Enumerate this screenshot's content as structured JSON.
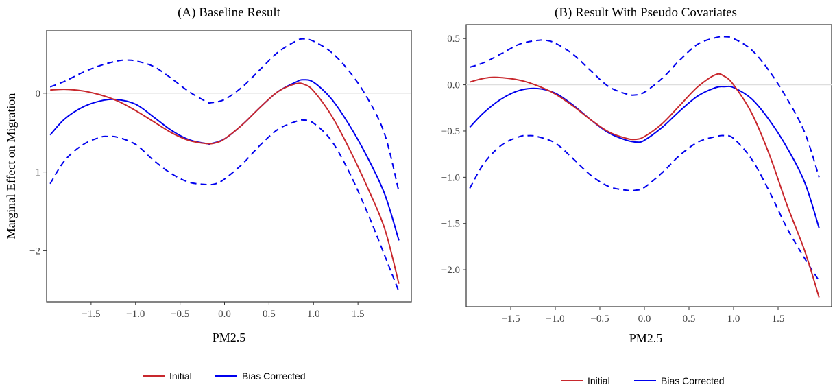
{
  "chart_data": [
    {
      "type": "line",
      "title": "(A) Baseline Result",
      "xlabel": "PM2.5",
      "ylabel": "Marginal Effect on Migration",
      "xlim": [
        -2.0,
        2.1
      ],
      "ylim": [
        -2.65,
        0.8
      ],
      "x_ticks": [
        -1.5,
        -1.0,
        -0.5,
        0.0,
        0.5,
        1.0,
        1.5
      ],
      "x_tick_labels": [
        "−1.5",
        "−1.0",
        "−0.5",
        "0.0",
        "0.5",
        "1.0",
        "1.5"
      ],
      "y_ticks": [
        0,
        -1,
        -2
      ],
      "y_tick_labels": [
        "0",
        "−1",
        "−2"
      ],
      "reference_line_y": 0,
      "grid": false,
      "legend": {
        "position": "bottom",
        "entries": [
          "Initial",
          "Bias Corrected"
        ]
      },
      "series": [
        {
          "name": "Initial",
          "style": "solid",
          "color": "#c8282d",
          "points": [
            [
              -1.96,
              0.04
            ],
            [
              -1.8,
              0.05
            ],
            [
              -1.6,
              0.03
            ],
            [
              -1.4,
              -0.02
            ],
            [
              -1.2,
              -0.1
            ],
            [
              -1.0,
              -0.22
            ],
            [
              -0.8,
              -0.36
            ],
            [
              -0.6,
              -0.5
            ],
            [
              -0.4,
              -0.6
            ],
            [
              -0.2,
              -0.64
            ],
            [
              -0.1,
              -0.63
            ],
            [
              0.0,
              -0.58
            ],
            [
              0.2,
              -0.4
            ],
            [
              0.4,
              -0.18
            ],
            [
              0.6,
              0.02
            ],
            [
              0.8,
              0.12
            ],
            [
              0.9,
              0.11
            ],
            [
              1.0,
              0.03
            ],
            [
              1.2,
              -0.28
            ],
            [
              1.4,
              -0.7
            ],
            [
              1.6,
              -1.18
            ],
            [
              1.8,
              -1.72
            ],
            [
              1.96,
              -2.42
            ]
          ]
        },
        {
          "name": "Bias Corrected",
          "style": "solid",
          "color": "#0000ee",
          "points": [
            [
              -1.96,
              -0.53
            ],
            [
              -1.8,
              -0.33
            ],
            [
              -1.6,
              -0.18
            ],
            [
              -1.4,
              -0.1
            ],
            [
              -1.22,
              -0.08
            ],
            [
              -1.0,
              -0.14
            ],
            [
              -0.8,
              -0.3
            ],
            [
              -0.6,
              -0.47
            ],
            [
              -0.4,
              -0.59
            ],
            [
              -0.2,
              -0.64
            ],
            [
              -0.15,
              -0.64
            ],
            [
              0.0,
              -0.58
            ],
            [
              0.2,
              -0.4
            ],
            [
              0.4,
              -0.18
            ],
            [
              0.6,
              0.02
            ],
            [
              0.8,
              0.14
            ],
            [
              0.88,
              0.17
            ],
            [
              1.0,
              0.14
            ],
            [
              1.2,
              -0.07
            ],
            [
              1.4,
              -0.4
            ],
            [
              1.6,
              -0.8
            ],
            [
              1.8,
              -1.28
            ],
            [
              1.96,
              -1.87
            ]
          ]
        },
        {
          "name": "Upper band",
          "style": "dashed",
          "color": "#0000ee",
          "points": [
            [
              -1.96,
              0.08
            ],
            [
              -1.8,
              0.15
            ],
            [
              -1.6,
              0.26
            ],
            [
              -1.4,
              0.35
            ],
            [
              -1.2,
              0.41
            ],
            [
              -1.1,
              0.42
            ],
            [
              -1.0,
              0.41
            ],
            [
              -0.8,
              0.34
            ],
            [
              -0.6,
              0.19
            ],
            [
              -0.4,
              0.02
            ],
            [
              -0.2,
              -0.11
            ],
            [
              -0.15,
              -0.12
            ],
            [
              0.0,
              -0.08
            ],
            [
              0.2,
              0.08
            ],
            [
              0.4,
              0.3
            ],
            [
              0.6,
              0.52
            ],
            [
              0.8,
              0.66
            ],
            [
              0.88,
              0.69
            ],
            [
              1.0,
              0.66
            ],
            [
              1.2,
              0.52
            ],
            [
              1.4,
              0.28
            ],
            [
              1.6,
              -0.05
            ],
            [
              1.8,
              -0.52
            ],
            [
              1.96,
              -1.25
            ]
          ]
        },
        {
          "name": "Lower band",
          "style": "dashed",
          "color": "#0000ee",
          "points": [
            [
              -1.96,
              -1.15
            ],
            [
              -1.8,
              -0.86
            ],
            [
              -1.6,
              -0.66
            ],
            [
              -1.4,
              -0.56
            ],
            [
              -1.3,
              -0.55
            ],
            [
              -1.2,
              -0.56
            ],
            [
              -1.0,
              -0.65
            ],
            [
              -0.8,
              -0.85
            ],
            [
              -0.6,
              -1.02
            ],
            [
              -0.4,
              -1.13
            ],
            [
              -0.2,
              -1.16
            ],
            [
              -0.1,
              -1.15
            ],
            [
              0.0,
              -1.09
            ],
            [
              0.2,
              -0.9
            ],
            [
              0.4,
              -0.66
            ],
            [
              0.6,
              -0.46
            ],
            [
              0.8,
              -0.36
            ],
            [
              0.88,
              -0.34
            ],
            [
              1.0,
              -0.38
            ],
            [
              1.2,
              -0.6
            ],
            [
              1.4,
              -1.0
            ],
            [
              1.6,
              -1.5
            ],
            [
              1.8,
              -2.06
            ],
            [
              1.96,
              -2.52
            ]
          ]
        }
      ]
    },
    {
      "type": "line",
      "title": "(B) Result With Pseudo Covariates",
      "xlabel": "PM2.5",
      "ylabel": "",
      "xlim": [
        -2.0,
        2.1
      ],
      "ylim": [
        -2.4,
        0.65
      ],
      "x_ticks": [
        -1.5,
        -1.0,
        -0.5,
        0.0,
        0.5,
        1.0,
        1.5
      ],
      "x_tick_labels": [
        "−1.5",
        "−1.0",
        "−0.5",
        "0.0",
        "0.5",
        "1.0",
        "1.5"
      ],
      "y_ticks": [
        0.5,
        0.0,
        -0.5,
        -1.0,
        -1.5,
        -2.0
      ],
      "y_tick_labels": [
        "0.5",
        "0.0",
        "−0.5",
        "−1.0",
        "−1.5",
        "−2.0"
      ],
      "reference_line_y": 0,
      "grid": false,
      "legend": {
        "position": "bottom",
        "entries": [
          "Initial",
          "Bias Corrected"
        ]
      },
      "series": [
        {
          "name": "Initial",
          "style": "solid",
          "color": "#c8282d",
          "points": [
            [
              -1.96,
              0.03
            ],
            [
              -1.8,
              0.07
            ],
            [
              -1.65,
              0.08
            ],
            [
              -1.4,
              0.05
            ],
            [
              -1.2,
              -0.01
            ],
            [
              -1.0,
              -0.1
            ],
            [
              -0.8,
              -0.23
            ],
            [
              -0.6,
              -0.38
            ],
            [
              -0.4,
              -0.51
            ],
            [
              -0.2,
              -0.58
            ],
            [
              -0.1,
              -0.59
            ],
            [
              0.0,
              -0.56
            ],
            [
              0.2,
              -0.42
            ],
            [
              0.4,
              -0.22
            ],
            [
              0.6,
              -0.02
            ],
            [
              0.8,
              0.11
            ],
            [
              0.9,
              0.09
            ],
            [
              1.0,
              0.0
            ],
            [
              1.2,
              -0.3
            ],
            [
              1.4,
              -0.75
            ],
            [
              1.6,
              -1.3
            ],
            [
              1.8,
              -1.8
            ],
            [
              1.96,
              -2.3
            ]
          ]
        },
        {
          "name": "Bias Corrected",
          "style": "solid",
          "color": "#0000ee",
          "points": [
            [
              -1.96,
              -0.46
            ],
            [
              -1.8,
              -0.3
            ],
            [
              -1.6,
              -0.15
            ],
            [
              -1.4,
              -0.06
            ],
            [
              -1.2,
              -0.04
            ],
            [
              -1.0,
              -0.09
            ],
            [
              -0.8,
              -0.22
            ],
            [
              -0.6,
              -0.38
            ],
            [
              -0.4,
              -0.52
            ],
            [
              -0.2,
              -0.6
            ],
            [
              -0.08,
              -0.62
            ],
            [
              0.0,
              -0.6
            ],
            [
              0.2,
              -0.46
            ],
            [
              0.4,
              -0.28
            ],
            [
              0.6,
              -0.12
            ],
            [
              0.8,
              -0.03
            ],
            [
              0.9,
              -0.02
            ],
            [
              1.0,
              -0.03
            ],
            [
              1.2,
              -0.15
            ],
            [
              1.4,
              -0.38
            ],
            [
              1.6,
              -0.68
            ],
            [
              1.8,
              -1.06
            ],
            [
              1.96,
              -1.55
            ]
          ]
        },
        {
          "name": "Upper band",
          "style": "dashed",
          "color": "#0000ee",
          "points": [
            [
              -1.96,
              0.19
            ],
            [
              -1.8,
              0.24
            ],
            [
              -1.6,
              0.34
            ],
            [
              -1.4,
              0.44
            ],
            [
              -1.2,
              0.48
            ],
            [
              -1.1,
              0.48
            ],
            [
              -1.0,
              0.45
            ],
            [
              -0.8,
              0.33
            ],
            [
              -0.6,
              0.15
            ],
            [
              -0.4,
              -0.02
            ],
            [
              -0.2,
              -0.1
            ],
            [
              -0.1,
              -0.11
            ],
            [
              0.0,
              -0.08
            ],
            [
              0.2,
              0.07
            ],
            [
              0.4,
              0.27
            ],
            [
              0.6,
              0.44
            ],
            [
              0.8,
              0.51
            ],
            [
              0.9,
              0.52
            ],
            [
              1.0,
              0.5
            ],
            [
              1.2,
              0.38
            ],
            [
              1.4,
              0.15
            ],
            [
              1.6,
              -0.15
            ],
            [
              1.8,
              -0.52
            ],
            [
              1.96,
              -1.0
            ]
          ]
        },
        {
          "name": "Lower band",
          "style": "dashed",
          "color": "#0000ee",
          "points": [
            [
              -1.96,
              -1.12
            ],
            [
              -1.8,
              -0.85
            ],
            [
              -1.6,
              -0.65
            ],
            [
              -1.4,
              -0.56
            ],
            [
              -1.3,
              -0.55
            ],
            [
              -1.2,
              -0.56
            ],
            [
              -1.0,
              -0.63
            ],
            [
              -0.8,
              -0.8
            ],
            [
              -0.6,
              -0.98
            ],
            [
              -0.4,
              -1.1
            ],
            [
              -0.2,
              -1.14
            ],
            [
              -0.1,
              -1.14
            ],
            [
              0.0,
              -1.11
            ],
            [
              0.2,
              -0.95
            ],
            [
              0.4,
              -0.76
            ],
            [
              0.6,
              -0.62
            ],
            [
              0.8,
              -0.56
            ],
            [
              0.9,
              -0.55
            ],
            [
              1.0,
              -0.58
            ],
            [
              1.2,
              -0.8
            ],
            [
              1.4,
              -1.15
            ],
            [
              1.6,
              -1.55
            ],
            [
              1.8,
              -1.88
            ],
            [
              1.96,
              -2.12
            ]
          ]
        }
      ]
    }
  ]
}
